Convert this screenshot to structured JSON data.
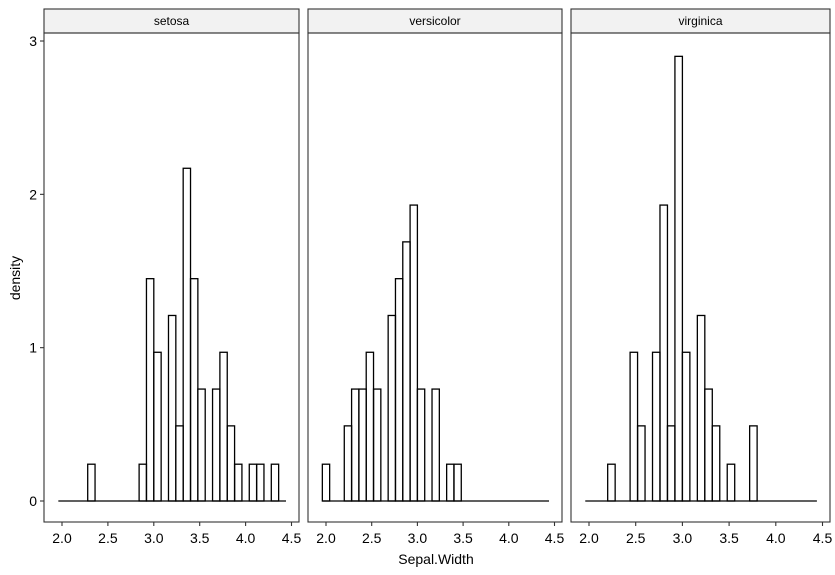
{
  "chart_data": {
    "type": "bar",
    "subtype": "faceted-histogram",
    "xlabel": "Sepal.Width",
    "ylabel": "density",
    "xlim": [
      1.9,
      4.5
    ],
    "ylim": [
      0,
      3.05
    ],
    "xticks": [
      "2.0",
      "2.5",
      "3.0",
      "3.5",
      "4.0",
      "4.5"
    ],
    "yticks": [
      "0",
      "1",
      "2",
      "3"
    ],
    "binwidth": 0.08,
    "grid": false,
    "colors": {
      "bar_stroke": "#000000",
      "bar_fill": "none",
      "strip_fill": "#f2f2f2",
      "border": "#333333"
    },
    "facets": [
      {
        "name": "setosa",
        "bins": [
          {
            "x": 2.32,
            "y": 0.24
          },
          {
            "x": 2.88,
            "y": 0.24
          },
          {
            "x": 2.96,
            "y": 1.45
          },
          {
            "x": 3.04,
            "y": 0.97
          },
          {
            "x": 3.2,
            "y": 1.21
          },
          {
            "x": 3.28,
            "y": 0.49
          },
          {
            "x": 3.36,
            "y": 2.17
          },
          {
            "x": 3.44,
            "y": 1.45
          },
          {
            "x": 3.52,
            "y": 0.73
          },
          {
            "x": 3.68,
            "y": 0.73
          },
          {
            "x": 3.76,
            "y": 0.97
          },
          {
            "x": 3.84,
            "y": 0.49
          },
          {
            "x": 3.92,
            "y": 0.24
          },
          {
            "x": 4.08,
            "y": 0.24
          },
          {
            "x": 4.16,
            "y": 0.24
          },
          {
            "x": 4.32,
            "y": 0.24
          }
        ]
      },
      {
        "name": "versicolor",
        "bins": [
          {
            "x": 2.0,
            "y": 0.24
          },
          {
            "x": 2.24,
            "y": 0.49
          },
          {
            "x": 2.32,
            "y": 0.73
          },
          {
            "x": 2.4,
            "y": 0.73
          },
          {
            "x": 2.48,
            "y": 0.97
          },
          {
            "x": 2.56,
            "y": 0.73
          },
          {
            "x": 2.72,
            "y": 1.21
          },
          {
            "x": 2.8,
            "y": 1.45
          },
          {
            "x": 2.88,
            "y": 1.69
          },
          {
            "x": 2.96,
            "y": 1.93
          },
          {
            "x": 3.04,
            "y": 0.73
          },
          {
            "x": 3.2,
            "y": 0.73
          },
          {
            "x": 3.36,
            "y": 0.24
          },
          {
            "x": 3.44,
            "y": 0.24
          }
        ]
      },
      {
        "name": "virginica",
        "bins": [
          {
            "x": 2.24,
            "y": 0.24
          },
          {
            "x": 2.48,
            "y": 0.97
          },
          {
            "x": 2.56,
            "y": 0.49
          },
          {
            "x": 2.72,
            "y": 0.97
          },
          {
            "x": 2.8,
            "y": 1.93
          },
          {
            "x": 2.88,
            "y": 0.49
          },
          {
            "x": 2.96,
            "y": 2.9
          },
          {
            "x": 3.04,
            "y": 0.97
          },
          {
            "x": 3.2,
            "y": 1.21
          },
          {
            "x": 3.28,
            "y": 0.73
          },
          {
            "x": 3.36,
            "y": 0.49
          },
          {
            "x": 3.52,
            "y": 0.24
          },
          {
            "x": 3.76,
            "y": 0.49
          }
        ]
      }
    ]
  }
}
